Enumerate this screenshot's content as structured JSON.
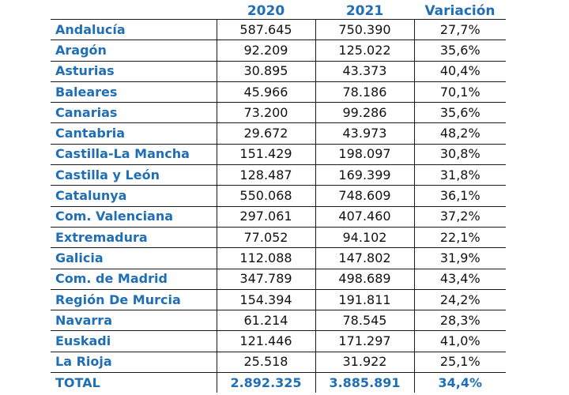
{
  "header": {
    "col_region": "",
    "col_2020": "2020",
    "col_2021": "2021",
    "col_variation": "Variación"
  },
  "rows": [
    {
      "region": "Andalucía",
      "y2020": "587.645",
      "y2021": "750.390",
      "variation": "27,7%"
    },
    {
      "region": "Aragón",
      "y2020": "92.209",
      "y2021": "125.022",
      "variation": "35,6%"
    },
    {
      "region": "Asturias",
      "y2020": "30.895",
      "y2021": "43.373",
      "variation": "40,4%"
    },
    {
      "region": "Baleares",
      "y2020": "45.966",
      "y2021": "78.186",
      "variation": "70,1%"
    },
    {
      "region": "Canarias",
      "y2020": "73.200",
      "y2021": "99.286",
      "variation": "35,6%"
    },
    {
      "region": "Cantabria",
      "y2020": "29.672",
      "y2021": "43.973",
      "variation": "48,2%"
    },
    {
      "region": "Castilla-La Mancha",
      "y2020": "151.429",
      "y2021": "198.097",
      "variation": "30,8%"
    },
    {
      "region": "Castilla y León",
      "y2020": "128.487",
      "y2021": "169.399",
      "variation": "31,8%"
    },
    {
      "region": "Catalunya",
      "y2020": "550.068",
      "y2021": "748.609",
      "variation": "36,1%"
    },
    {
      "region": "Com. Valenciana",
      "y2020": "297.061",
      "y2021": "407.460",
      "variation": "37,2%"
    },
    {
      "region": "Extremadura",
      "y2020": "77.052",
      "y2021": "94.102",
      "variation": "22,1%"
    },
    {
      "region": "Galicia",
      "y2020": "112.088",
      "y2021": "147.802",
      "variation": "31,9%"
    },
    {
      "region": "Com. de Madrid",
      "y2020": "347.789",
      "y2021": "498.689",
      "variation": "43,4%"
    },
    {
      "region": "Región De Murcia",
      "y2020": "154.394",
      "y2021": "191.811",
      "variation": "24,2%"
    },
    {
      "region": "Navarra",
      "y2020": "61.214",
      "y2021": "78.545",
      "variation": "28,3%"
    },
    {
      "region": "Euskadi",
      "y2020": "121.446",
      "y2021": "171.297",
      "variation": "41,0%"
    },
    {
      "region": "La Rioja",
      "y2020": "25.518",
      "y2021": "31.922",
      "variation": "25,1%"
    }
  ],
  "total": {
    "region": "TOTAL",
    "y2020": "2.892.325",
    "y2021": "3.885.891",
    "variation": "34,4%"
  },
  "colors": {
    "header_blue": "#1f6eb6",
    "text": "#111111",
    "border": "#1a1a1a"
  }
}
